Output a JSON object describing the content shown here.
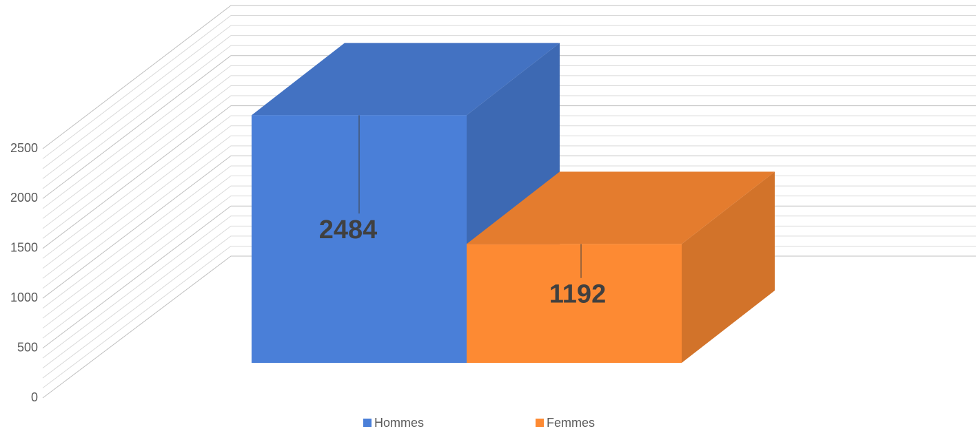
{
  "chart_data": {
    "type": "bar3d",
    "categories": [
      null
    ],
    "series": [
      {
        "name": "Hommes",
        "color": "#4a7fd8",
        "values": [
          2484
        ]
      },
      {
        "name": "Femmes",
        "color": "#fd8a33",
        "values": [
          1192
        ]
      }
    ],
    "ylim": [
      0,
      2500
    ],
    "yticks": [
      0,
      500,
      1000,
      1500,
      2000,
      2500
    ],
    "grid": true,
    "legend": "bottom",
    "data_labels": true
  }
}
